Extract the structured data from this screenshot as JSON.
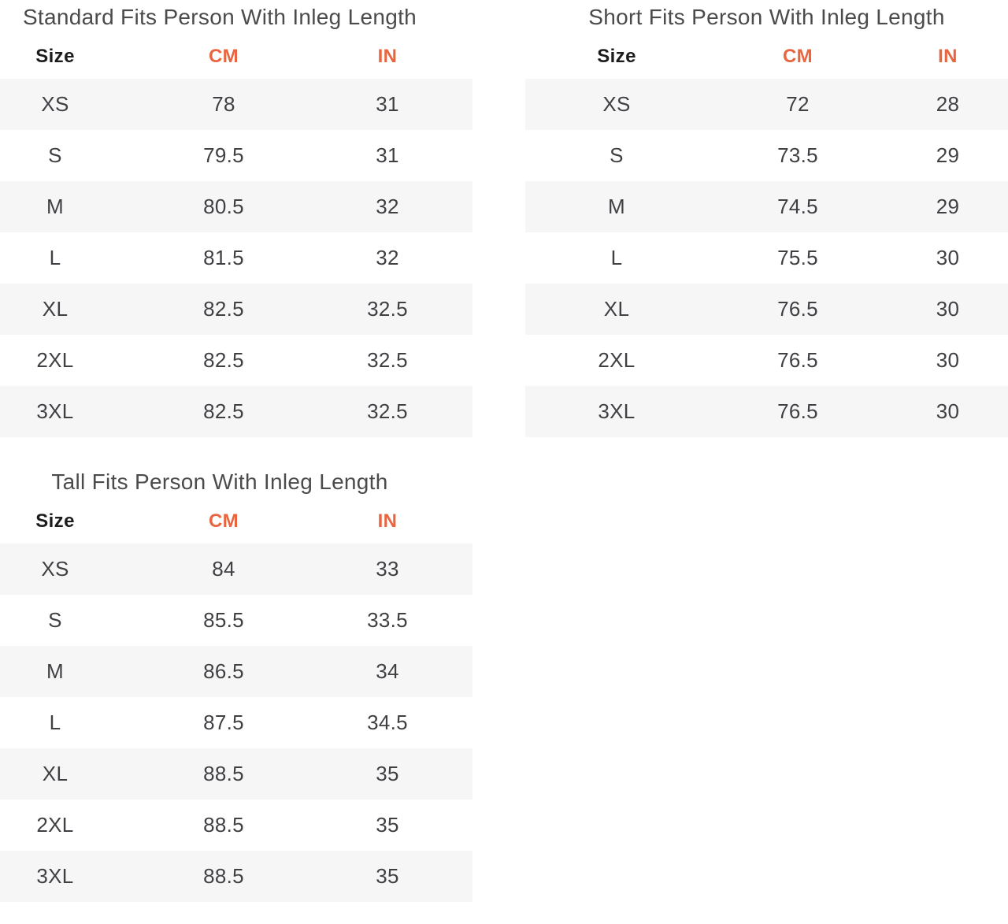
{
  "colors": {
    "accent": "#e8653f",
    "row_stripe": "#f6f6f7",
    "title_text": "#4b4b4d",
    "header_text": "#1c1c1e",
    "cell_text": "#3f4043",
    "background": "#ffffff"
  },
  "chart_data": [
    {
      "type": "table",
      "title": "Standard Fits Person With Inleg Length",
      "columns": [
        "Size",
        "CM",
        "IN"
      ],
      "rows": [
        [
          "XS",
          "78",
          "31"
        ],
        [
          "S",
          "79.5",
          "31"
        ],
        [
          "M",
          "80.5",
          "32"
        ],
        [
          "L",
          "81.5",
          "32"
        ],
        [
          "XL",
          "82.5",
          "32.5"
        ],
        [
          "2XL",
          "82.5",
          "32.5"
        ],
        [
          "3XL",
          "82.5",
          "32.5"
        ]
      ]
    },
    {
      "type": "table",
      "title": "Short Fits Person With Inleg Length",
      "columns": [
        "Size",
        "CM",
        "IN"
      ],
      "rows": [
        [
          "XS",
          "72",
          "28"
        ],
        [
          "S",
          "73.5",
          "29"
        ],
        [
          "M",
          "74.5",
          "29"
        ],
        [
          "L",
          "75.5",
          "30"
        ],
        [
          "XL",
          "76.5",
          "30"
        ],
        [
          "2XL",
          "76.5",
          "30"
        ],
        [
          "3XL",
          "76.5",
          "30"
        ]
      ]
    },
    {
      "type": "table",
      "title": "Tall Fits Person With Inleg Length",
      "columns": [
        "Size",
        "CM",
        "IN"
      ],
      "rows": [
        [
          "XS",
          "84",
          "33"
        ],
        [
          "S",
          "85.5",
          "33.5"
        ],
        [
          "M",
          "86.5",
          "34"
        ],
        [
          "L",
          "87.5",
          "34.5"
        ],
        [
          "XL",
          "88.5",
          "35"
        ],
        [
          "2XL",
          "88.5",
          "35"
        ],
        [
          "3XL",
          "88.5",
          "35"
        ]
      ]
    }
  ]
}
